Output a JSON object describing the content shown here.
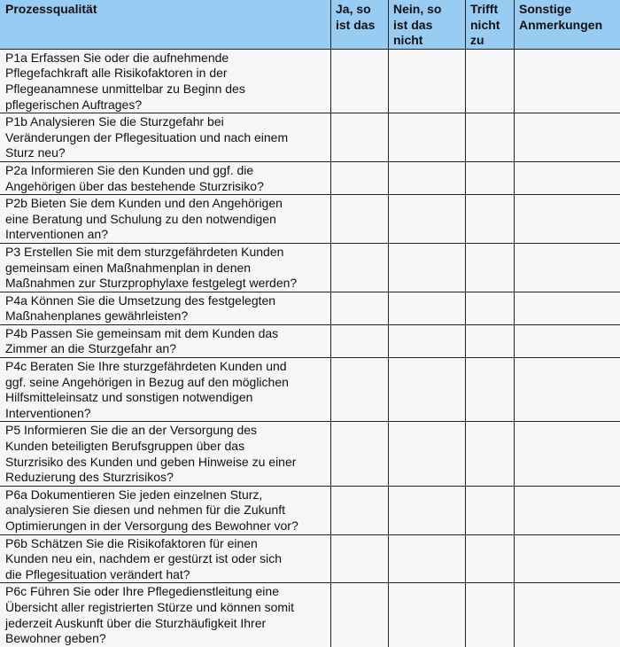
{
  "header": {
    "col1": "Prozessqualität",
    "col2": "Ja, so\nist das",
    "col3": "Nein, so\nist das\nnicht",
    "col4": "Trifft\nnicht\nzu",
    "col5": "Sonstige\nAnmerkungen"
  },
  "colors": {
    "header_bg": "#99ccf3",
    "cell_bg": "#f6f6f6"
  },
  "rows": [
    "P1a Erfassen Sie oder die aufnehmende\nPflegefachkraft alle Risikofaktoren in der\nPflegeanamnese unmittelbar zu Beginn des\npflegerischen Auftrages?",
    "P1b Analysieren Sie die Sturzgefahr bei\nVeränderungen der Pflegesituation und nach einem\nSturz neu?",
    "P2a Informieren Sie den Kunden und ggf. die\nAngehörigen über das bestehende Sturzrisiko?",
    "P2b Bieten Sie dem Kunden und den Angehörigen\neine Beratung und Schulung zu den notwendigen\nInterventionen an?",
    "P3 Erstellen Sie mit dem sturzgefährdeten Kunden\ngemeinsam einen Maßnahmenplan in denen\nMaßnahmen zur Sturzprophylaxe festgelegt werden?",
    "P4a Können Sie die Umsetzung des festgelegten\nMaßnahenplanes gewährleisten?",
    "P4b Passen Sie gemeinsam mit dem Kunden das\nZimmer an die Sturzgefahr an?",
    "P4c Beraten Sie Ihre sturzgefährdeten Kunden und\nggf. seine Angehörigen in Bezug auf den möglichen\nHilfsmitteleinsatz und sonstigen notwendigen\nInterventionen?",
    "P5 Informieren Sie die an der Versorgung des\nKunden beteiligten Berufsgruppen über das\nSturzrisiko des Kunden und geben Hinweise zu einer\nReduzierung des Sturzrisikos?",
    "P6a Dokumentieren Sie jeden einzelnen Sturz,\nanalysieren Sie diesen und nehmen für die Zukunft\nOptimierungen in der Versorgung des Bewohner vor?",
    "P6b Schätzen Sie die Risikofaktoren für einen\nKunden neu ein, nachdem er gestürzt ist oder sich\ndie Pflegesituation verändert hat?",
    "P6c Führen Sie oder Ihre Pflegedienstleitung eine\nÜbersicht aller registrierten Stürze und können somit\njederzeit Auskunft über die Sturzhäufigkeit Ihrer\nBewohner geben?"
  ]
}
